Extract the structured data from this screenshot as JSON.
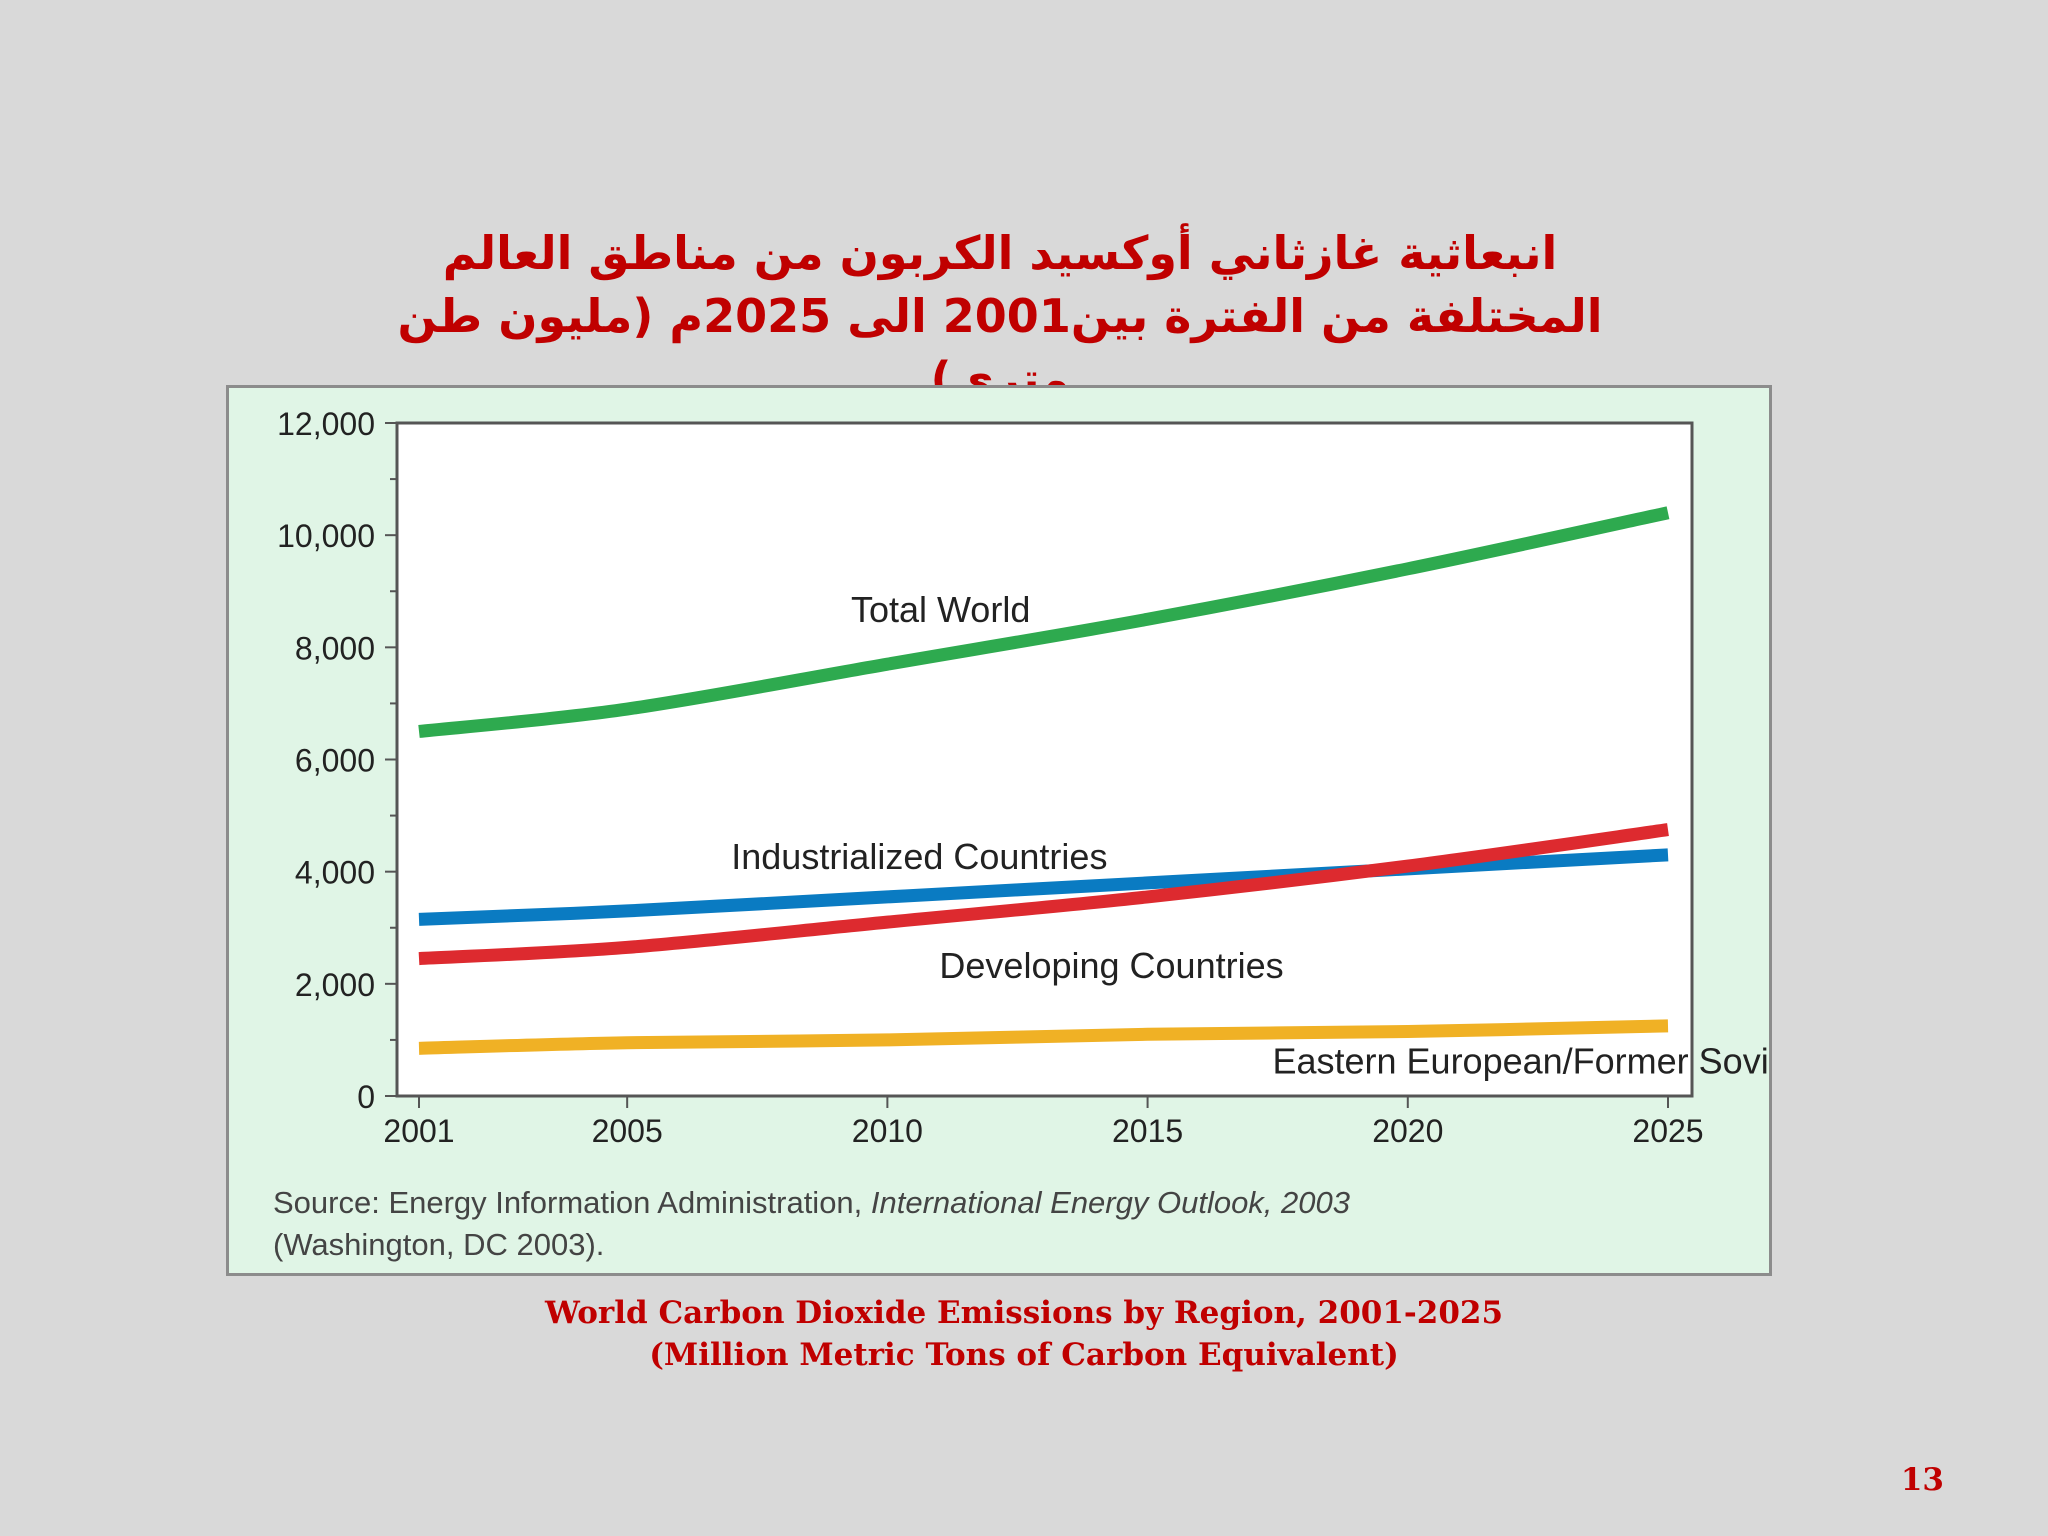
{
  "slide": {
    "title_lines": [
      "انبعاثية غازثاني أوكسيد الكربون من مناطق العالم",
      "المختلفة من الفترة بين2001 الى 2025م  (مليون طن",
      "متري)"
    ],
    "caption_lines": [
      "World Carbon Dioxide Emissions by Region, 2001-2025",
      "(Million Metric Tons of Carbon Equivalent)"
    ],
    "page_number": "13"
  },
  "source": {
    "prefix": "Source: Energy Information Administration, ",
    "publication": "International Energy Outlook, 2003",
    "suffix": "(Washington, DC 2003)."
  },
  "chart_data": {
    "type": "line",
    "title": "",
    "xlabel": "",
    "ylabel": "",
    "x": [
      2001,
      2005,
      2010,
      2015,
      2020,
      2025
    ],
    "x_tick_labels": [
      "2001",
      "2005",
      "2010",
      "2015",
      "2020",
      "2025"
    ],
    "y_tick_labels": [
      "0",
      "2,000",
      "4,000",
      "6,000",
      "8,000",
      "10,000",
      "12,000"
    ],
    "xlim": [
      2001,
      2025
    ],
    "ylim": [
      0,
      12000
    ],
    "grid": false,
    "legend": "inline labels",
    "series": [
      {
        "name": "Total World",
        "color": "#2eaa4f",
        "values": [
          6500,
          6900,
          7700,
          8500,
          9400,
          10400
        ]
      },
      {
        "name": "Industrialized Countries",
        "color": "#0a7bc2",
        "values": [
          3150,
          3300,
          3550,
          3800,
          4050,
          4300
        ]
      },
      {
        "name": "Developing Countries",
        "color": "#dd2a2f",
        "values": [
          2450,
          2650,
          3100,
          3550,
          4100,
          4750
        ]
      },
      {
        "name": "Eastern European/Former Soviet Union",
        "color": "#f0b125",
        "values": [
          850,
          950,
          1000,
          1100,
          1150,
          1250
        ]
      }
    ],
    "annotations": [
      {
        "series": "Total World",
        "x": 2009.3,
        "y": 8450
      },
      {
        "series": "Industrialized Countries",
        "x": 2007.0,
        "y": 4050
      },
      {
        "series": "Developing Countries",
        "x": 2011.0,
        "y": 2100
      },
      {
        "series": "Eastern European/Former Soviet Union",
        "x": 2017.4,
        "y": 400
      }
    ]
  }
}
